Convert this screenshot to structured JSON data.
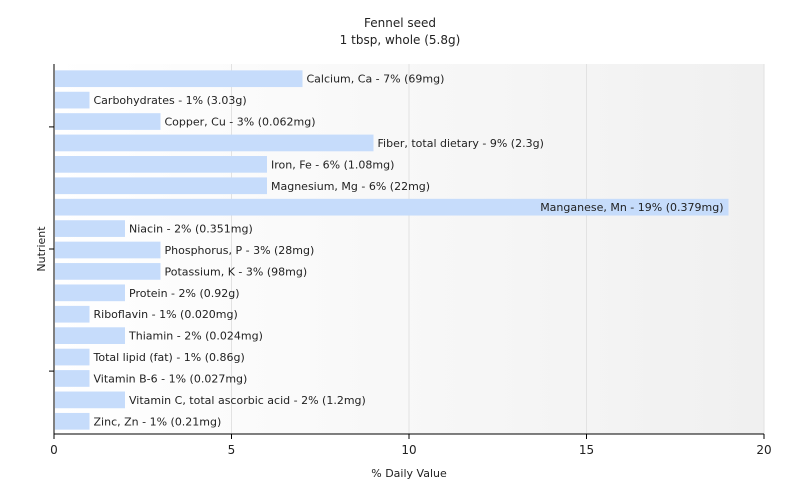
{
  "chart_data": {
    "type": "bar",
    "orientation": "horizontal",
    "title": "Fennel seed",
    "subtitle": "1 tbsp, whole (5.8g)",
    "xlabel": "% Daily Value",
    "ylabel": "Nutrient",
    "xlim": [
      0,
      20
    ],
    "xticks": [
      0,
      5,
      10,
      15,
      20
    ],
    "grid": true,
    "legend": "none",
    "bar_color": "#c6dcfb",
    "categories": [
      "Calcium, Ca",
      "Carbohydrates",
      "Copper, Cu",
      "Fiber, total dietary",
      "Iron, Fe",
      "Magnesium, Mg",
      "Manganese, Mn",
      "Niacin",
      "Phosphorus, P",
      "Potassium, K",
      "Protein",
      "Riboflavin",
      "Thiamin",
      "Total lipid (fat)",
      "Vitamin B-6",
      "Vitamin C, total ascorbic acid",
      "Zinc, Zn"
    ],
    "values": [
      7,
      1,
      3,
      9,
      6,
      6,
      19,
      2,
      3,
      3,
      2,
      1,
      2,
      1,
      1,
      2,
      1
    ],
    "labels": [
      "Calcium, Ca - 7% (69mg)",
      "Carbohydrates - 1% (3.03g)",
      "Copper, Cu - 3% (0.062mg)",
      "Fiber, total dietary - 9% (2.3g)",
      "Iron, Fe - 6% (1.08mg)",
      "Magnesium, Mg - 6% (22mg)",
      "Manganese, Mn - 19% (0.379mg)",
      "Niacin - 2% (0.351mg)",
      "Phosphorus, P - 3% (28mg)",
      "Potassium, K - 3% (98mg)",
      "Protein - 2% (0.92g)",
      "Riboflavin - 1% (0.020mg)",
      "Thiamin - 2% (0.024mg)",
      "Total lipid (fat) - 1% (0.86g)",
      "Vitamin B-6 - 1% (0.027mg)",
      "Vitamin C, total ascorbic acid - 2% (1.2mg)",
      "Zinc, Zn - 1% (0.21mg)"
    ]
  }
}
